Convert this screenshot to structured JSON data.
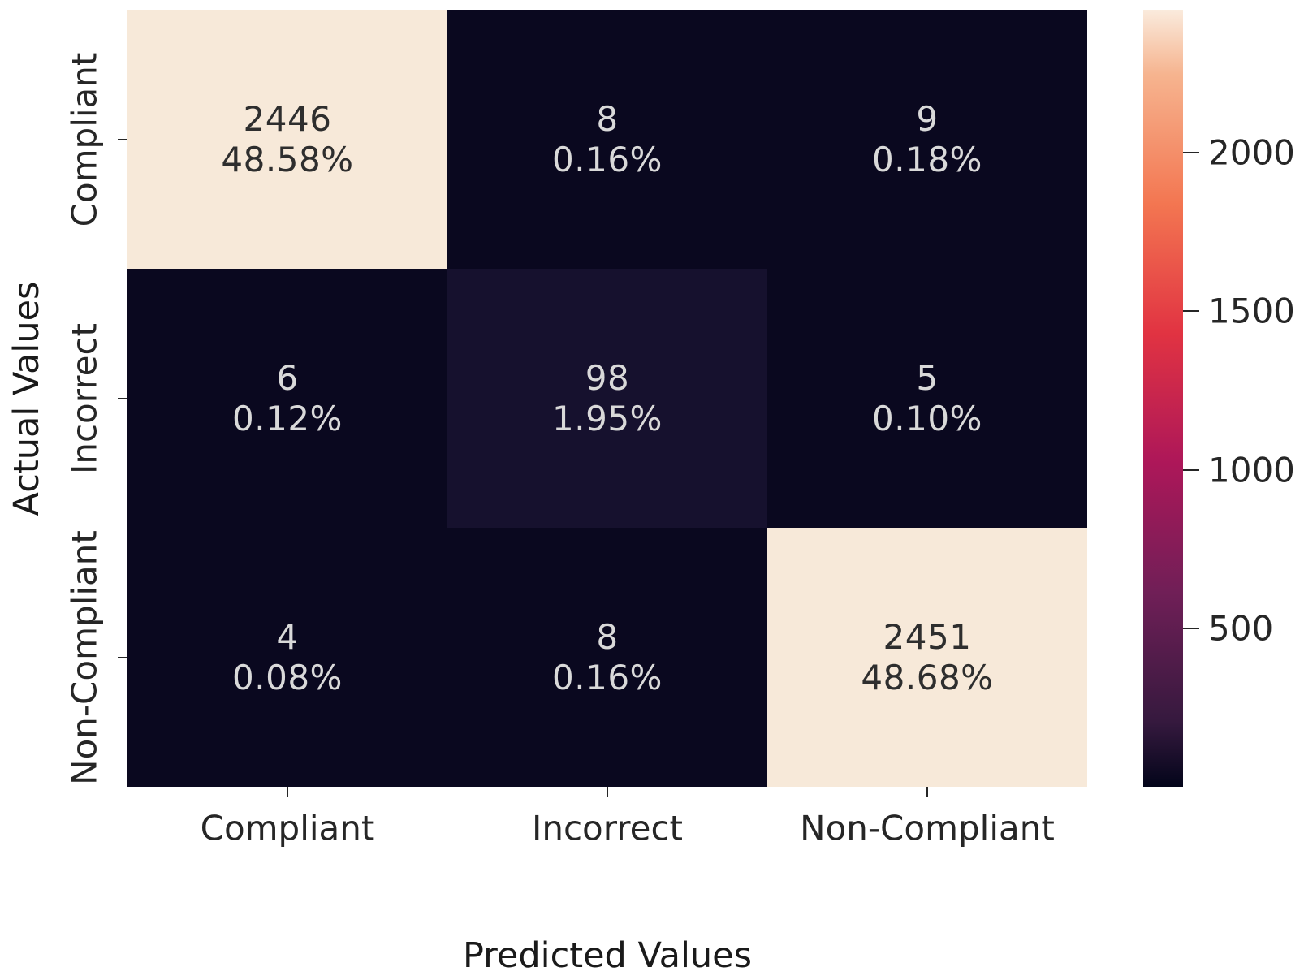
{
  "chart_data": {
    "type": "heatmap",
    "title": "",
    "xlabel": "Predicted Values",
    "ylabel": "Actual Values",
    "x_categories": [
      "Compliant",
      "Incorrect",
      "Non-Compliant"
    ],
    "y_categories": [
      "Compliant",
      "Incorrect",
      "Non-Compliant"
    ],
    "matrix_counts": [
      [
        2446,
        8,
        9
      ],
      [
        6,
        98,
        5
      ],
      [
        4,
        8,
        2451
      ]
    ],
    "matrix_percents": [
      [
        "48.58%",
        "0.16%",
        "0.18%"
      ],
      [
        "0.12%",
        "1.95%",
        "0.10%"
      ],
      [
        "0.08%",
        "0.16%",
        "48.68%"
      ]
    ],
    "vmin": 0,
    "vmax": 2451,
    "grid": false,
    "colormap": "rocket",
    "legend_position": "colorbar-right",
    "cell_bg": [
      [
        "#f7e9d9",
        "#0a081f",
        "#0a081f"
      ],
      [
        "#0a081f",
        "#16112e",
        "#0a081f"
      ],
      [
        "#0a081f",
        "#0a081f",
        "#f7e9d9"
      ]
    ],
    "cell_fg": [
      [
        "#2e2e2e",
        "#d9d9d9",
        "#d9d9d9"
      ],
      [
        "#d9d9d9",
        "#d9d9d9",
        "#d9d9d9"
      ],
      [
        "#d9d9d9",
        "#d9d9d9",
        "#2e2e2e"
      ]
    ],
    "colorbar": {
      "tick_values": [
        500,
        1000,
        1500,
        2000
      ],
      "tick_labels": [
        "500",
        "1000",
        "1500",
        "2000"
      ],
      "gradient_stops": [
        {
          "pos": 0,
          "color": "#03051A"
        },
        {
          "pos": 8.3,
          "color": "#35193E"
        },
        {
          "pos": 25,
          "color": "#701F57"
        },
        {
          "pos": 41.7,
          "color": "#AD1759"
        },
        {
          "pos": 58.3,
          "color": "#E13342"
        },
        {
          "pos": 75,
          "color": "#F37651"
        },
        {
          "pos": 91.7,
          "color": "#F6B48F"
        },
        {
          "pos": 100,
          "color": "#FAEBDD"
        }
      ]
    }
  }
}
